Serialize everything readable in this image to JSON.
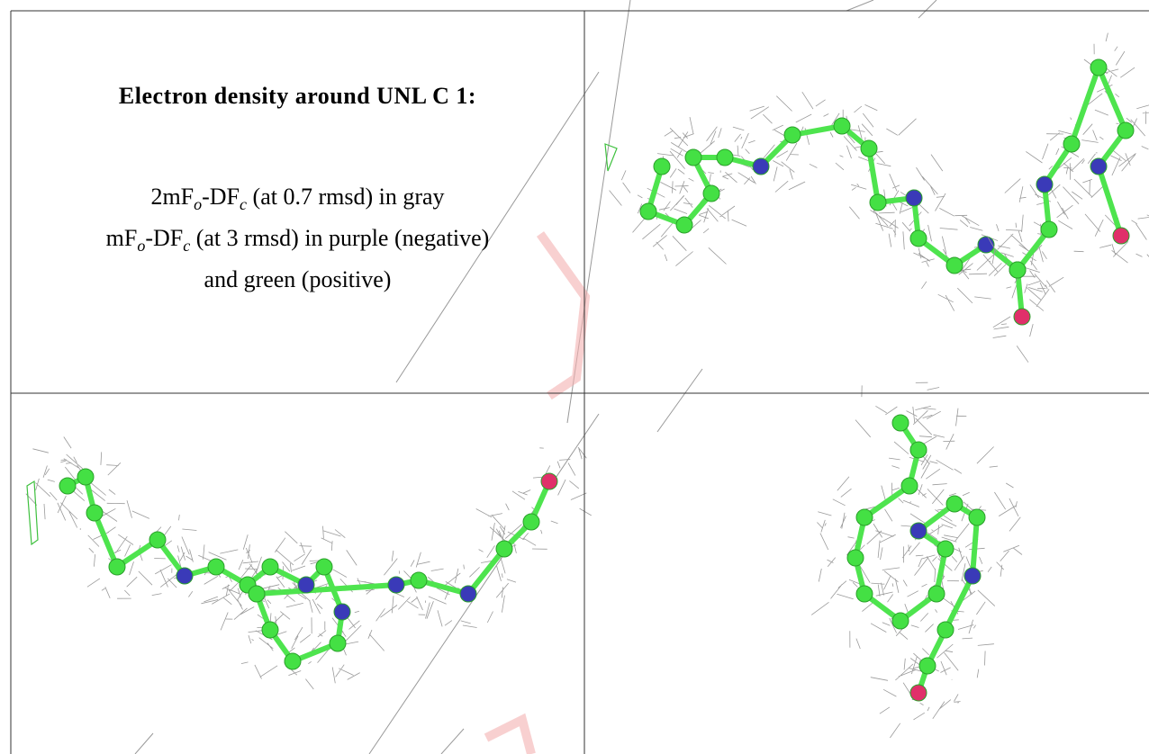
{
  "caption": {
    "title": "Electron density around UNL C 1:",
    "line1": [
      "2mF",
      "o",
      "-DF",
      "c",
      " (at 0.7 rmsd) in gray"
    ],
    "line2": [
      "mF",
      "o",
      "-DF",
      "c",
      " (at 3 rmsd) in purple (negative)"
    ],
    "line3": "and green (positive)"
  }
}
